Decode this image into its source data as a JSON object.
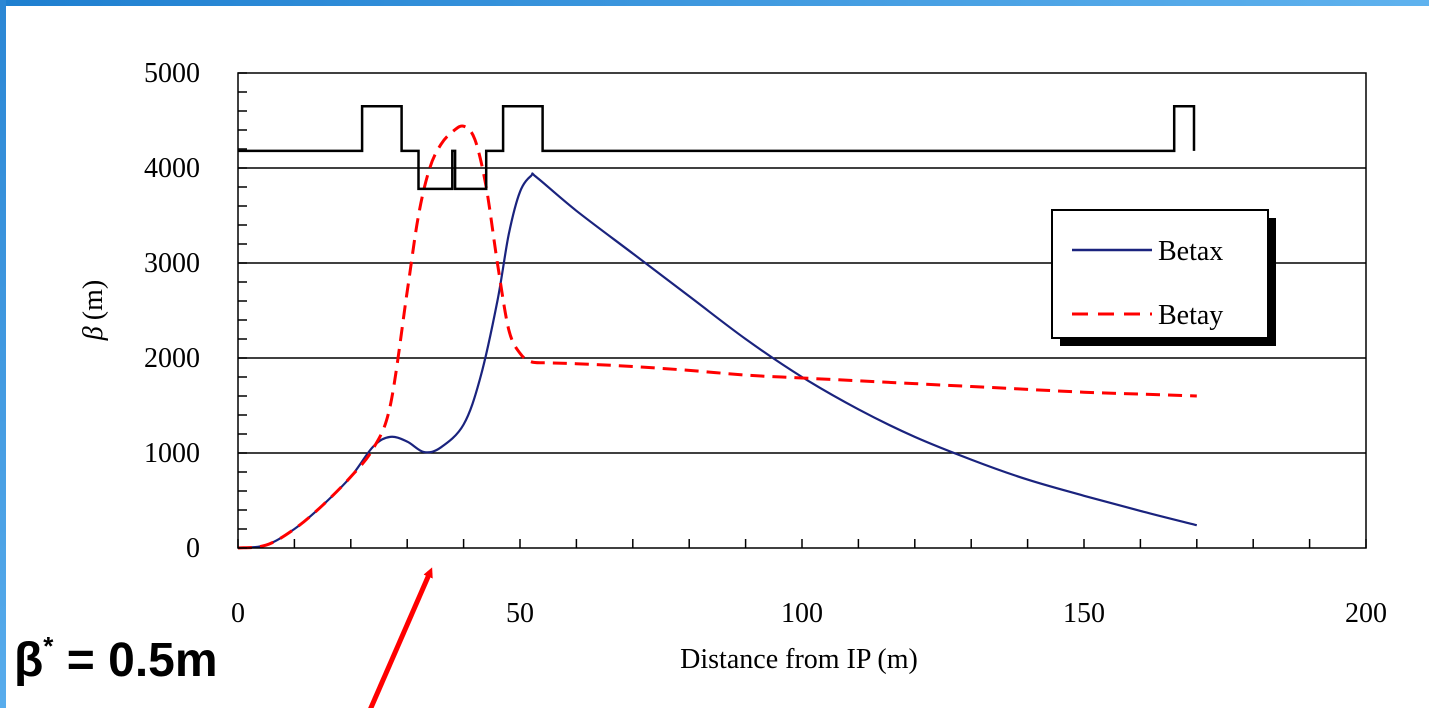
{
  "chart_data": {
    "type": "line",
    "xlabel": "Distance  from IP (m)",
    "ylabel_symbol": "β",
    "ylabel_unit": "(m)",
    "xlim": [
      0,
      200
    ],
    "ylim": [
      0,
      5000
    ],
    "x_ticks": [
      "0",
      "50",
      "100",
      "150",
      "200"
    ],
    "y_ticks": [
      "0",
      "1000",
      "2000",
      "3000",
      "4000",
      "5000"
    ],
    "x_tick_values": [
      0,
      50,
      100,
      150,
      200
    ],
    "y_tick_values": [
      0,
      1000,
      2000,
      3000,
      4000,
      5000
    ],
    "x_minor_step": 10,
    "y_minor_step": 200,
    "grid": "horizontal",
    "legend_position": "right",
    "series": [
      {
        "name": "Betax",
        "color": "#1a237e",
        "dash": "solid",
        "x": [
          0,
          5,
          10,
          15,
          20,
          24,
          27,
          30,
          33,
          36,
          40,
          43,
          46,
          48,
          50,
          52,
          53,
          60,
          70,
          80,
          90,
          100,
          110,
          120,
          130,
          140,
          150,
          160,
          170
        ],
        "y": [
          0,
          30,
          200,
          450,
          750,
          1070,
          1170,
          1120,
          1010,
          1060,
          1300,
          1800,
          2600,
          3300,
          3750,
          3920,
          3900,
          3550,
          3100,
          2650,
          2200,
          1800,
          1460,
          1170,
          930,
          720,
          550,
          390,
          240
        ]
      },
      {
        "name": "Betay",
        "color": "#ff0000",
        "dash": "dashed",
        "x": [
          0,
          5,
          10,
          15,
          20,
          24,
          27,
          30,
          32,
          34,
          36,
          38,
          40,
          42,
          44,
          46,
          48,
          50,
          52,
          55,
          60,
          70,
          80,
          90,
          100,
          110,
          120,
          130,
          140,
          150,
          160,
          170
        ],
        "y": [
          0,
          30,
          200,
          450,
          750,
          1050,
          1500,
          2700,
          3500,
          4000,
          4250,
          4380,
          4440,
          4300,
          3800,
          3000,
          2300,
          2050,
          1960,
          1950,
          1940,
          1910,
          1870,
          1820,
          1790,
          1760,
          1730,
          1700,
          1670,
          1640,
          1620,
          1600
        ]
      }
    ],
    "magnet_layout": {
      "color": "#000000",
      "x": [
        0,
        22,
        22,
        29,
        29,
        32,
        32,
        38,
        38,
        38.5,
        38.5,
        39,
        39,
        44,
        44,
        47,
        47,
        54,
        54,
        166,
        166,
        169.5,
        169.5
      ],
      "y": [
        4180,
        4180,
        4650,
        4650,
        4180,
        4180,
        3780,
        3780,
        4180,
        4180,
        3780,
        3780,
        3780,
        3780,
        4180,
        4180,
        4650,
        4650,
        4180,
        4180,
        4650,
        4650,
        4180
      ]
    },
    "annotation_arrow": {
      "color": "#ff0000",
      "points_to_x": 33
    }
  },
  "annotation": {
    "beta_symbol": "β",
    "beta_sup": "*",
    "beta_value": " = 0.5m"
  }
}
